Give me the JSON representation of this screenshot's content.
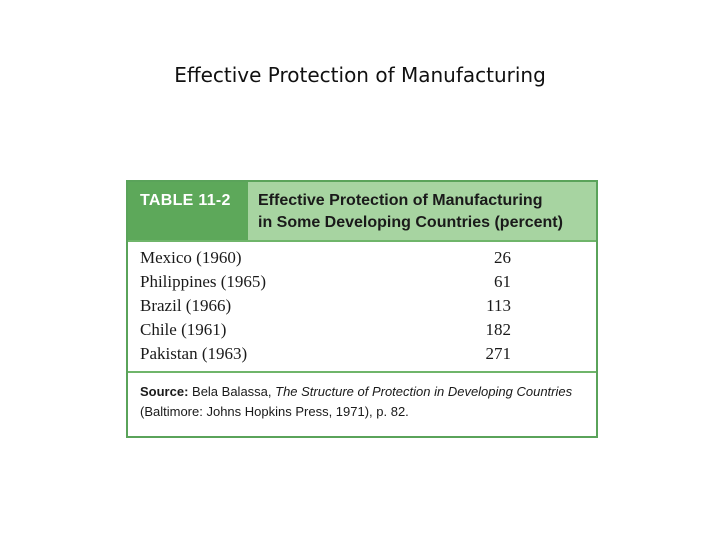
{
  "slide": {
    "title": "Effective Protection of Manufacturing"
  },
  "table": {
    "label": "TABLE 11-2",
    "caption_line1": "Effective Protection of Manufacturing",
    "caption_line2": "in Some Developing Countries (percent)",
    "rows": [
      {
        "country": "Mexico (1960)",
        "value": "26"
      },
      {
        "country": "Philippines (1965)",
        "value": "61"
      },
      {
        "country": "Brazil (1966)",
        "value": "113"
      },
      {
        "country": "Chile (1961)",
        "value": "182"
      },
      {
        "country": "Pakistan (1963)",
        "value": "271"
      }
    ],
    "source": {
      "label": "Source:",
      "author": " Bela Balassa, ",
      "book_part1": "The Structure of Protection in Developing Countries",
      "rest": " (Baltimore: Johns Hopkins Press, 1971), p. 82."
    }
  },
  "colors": {
    "border": "#5aa35a",
    "header_bg": "#a7d4a1",
    "label_bg": "#5da85a"
  }
}
